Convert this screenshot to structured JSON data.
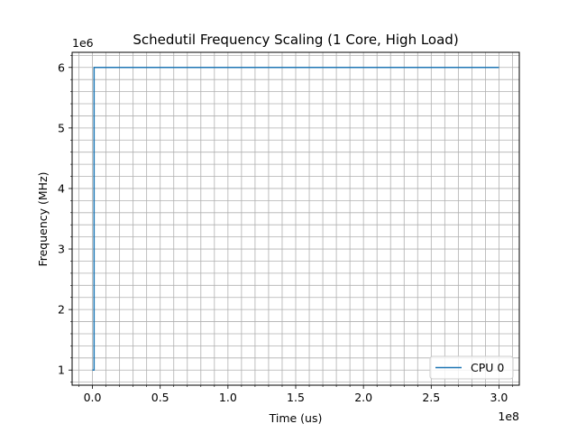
{
  "chart_data": {
    "type": "line",
    "title": "Schedutil Frequency Scaling (1 Core, High Load)",
    "xlabel": "Time (us)",
    "ylabel": "Frequency (MHz)",
    "x_offset_text": "1e8",
    "y_offset_text": "1e6",
    "x_ticks": [
      0,
      0.5,
      1.0,
      1.5,
      2.0,
      2.5,
      3.0
    ],
    "x_tick_labels": [
      "0.0",
      "0.5",
      "1.0",
      "1.5",
      "2.0",
      "2.5",
      "3.0"
    ],
    "y_ticks": [
      1,
      2,
      3,
      4,
      5,
      6
    ],
    "y_tick_labels": [
      "1",
      "2",
      "3",
      "4",
      "5",
      "6"
    ],
    "xlim": [
      -0.15,
      3.15
    ],
    "ylim": [
      0.75,
      6.25
    ],
    "grid": true,
    "grid_minor": true,
    "legend_position": "lower-right",
    "series": [
      {
        "name": "CPU 0",
        "color": "#1f77b4",
        "x": [
          0,
          0.012,
          0.012,
          3.0
        ],
        "y": [
          1,
          1,
          6,
          6
        ]
      }
    ]
  }
}
